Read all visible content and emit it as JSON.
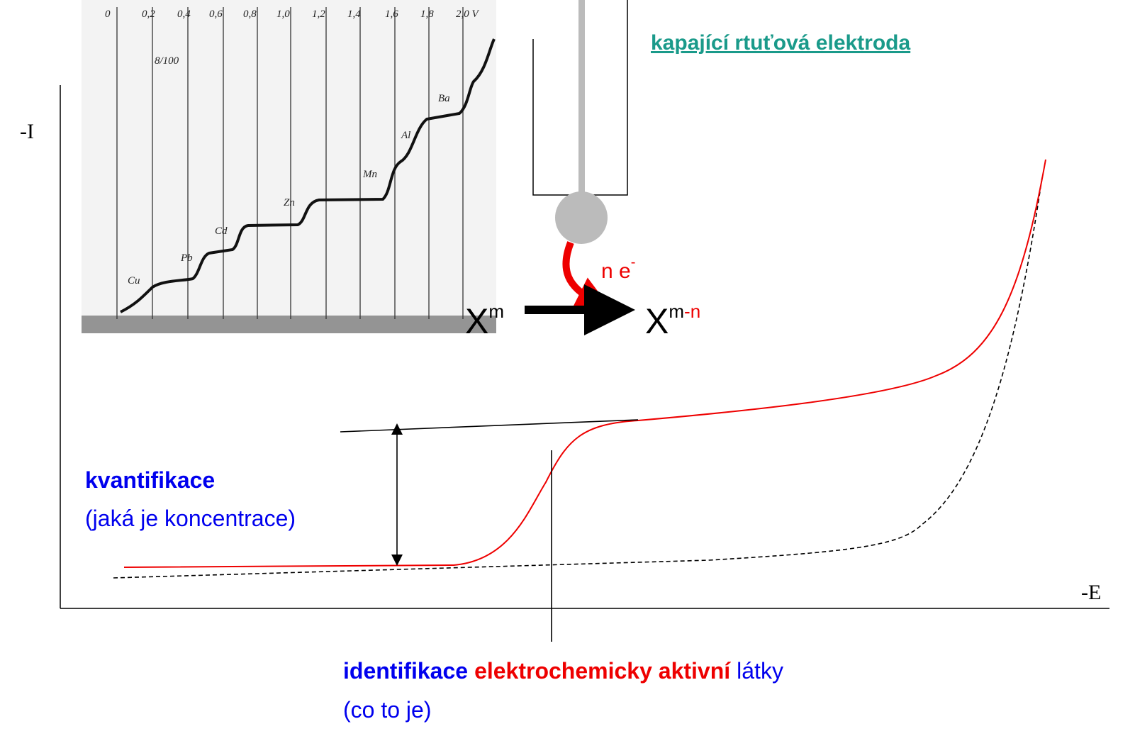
{
  "axes": {
    "y_label": "-I",
    "x_label": "-E"
  },
  "electrode": {
    "title": "kapající rtuťová elektroda"
  },
  "reaction": {
    "electrons": "n e",
    "electron_charge": "-",
    "reactant": "X",
    "reactant_charge": "m",
    "product": "X",
    "product_charge_m": "m",
    "product_charge_n": "-n"
  },
  "quantification": {
    "title": "kvantifikace",
    "subtitle": "(jaká je koncentrace)"
  },
  "identification": {
    "part1": "identifikace",
    "part2": "elektrochemicky aktivní",
    "part3": "látky",
    "subtitle": "(co to je)"
  },
  "polarogram": {
    "ticks": [
      "0",
      "0,2",
      "0,4",
      "0,6",
      "0,8",
      "1,0",
      "1,2",
      "1,4",
      "1,6",
      "1,8",
      "2,0 V"
    ],
    "sensitivity": "8/100",
    "elements": [
      "Cu",
      "Pb",
      "Cd",
      "Zn",
      "Mn",
      "Al",
      "Ba"
    ]
  }
}
